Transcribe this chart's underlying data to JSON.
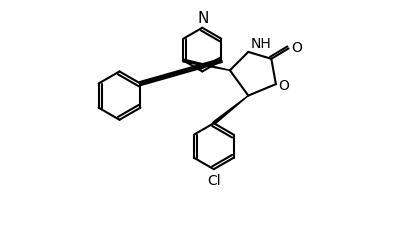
{
  "background": "#ffffff",
  "line_color": "#000000",
  "line_width": 1.5,
  "font_size": 10,
  "fig_width": 4.0,
  "fig_height": 2.3,
  "dpi": 100,
  "xlim": [
    0,
    10
  ],
  "ylim": [
    0,
    10
  ]
}
